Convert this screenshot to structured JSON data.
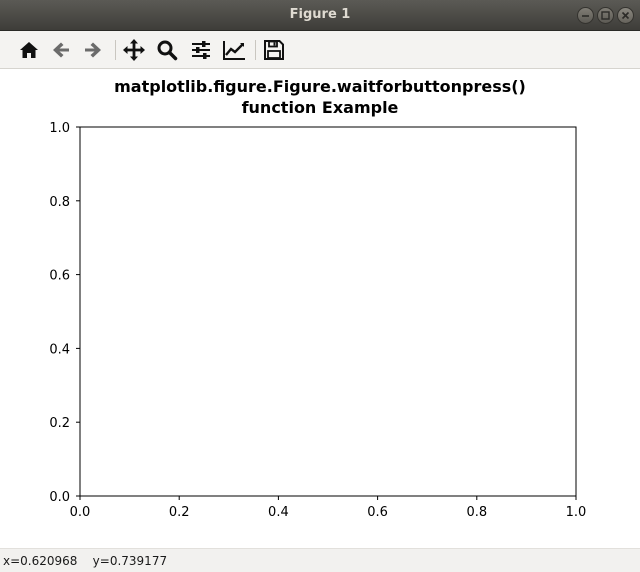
{
  "window": {
    "title": "Figure 1"
  },
  "toolbar": {
    "buttons": [
      {
        "name": "home",
        "icon": "home-icon"
      },
      {
        "name": "back",
        "icon": "arrow-left-icon"
      },
      {
        "name": "forward",
        "icon": "arrow-right-icon"
      },
      {
        "name": "pan",
        "icon": "move-icon"
      },
      {
        "name": "zoom",
        "icon": "magnifier-icon"
      },
      {
        "name": "configure-subplots",
        "icon": "sliders-icon"
      },
      {
        "name": "edit-axis",
        "icon": "line-chart-icon"
      },
      {
        "name": "save",
        "icon": "floppy-disk-icon"
      }
    ]
  },
  "figure": {
    "title_line1": "matplotlib.figure.Figure.waitforbuttonpress()",
    "title_line2": "function Example"
  },
  "chart_data": {
    "type": "line",
    "title": "matplotlib.figure.Figure.waitforbuttonpress() function Example",
    "xlabel": "",
    "ylabel": "",
    "xlim": [
      0.0,
      1.0
    ],
    "ylim": [
      0.0,
      1.0
    ],
    "x_ticks": [
      "0.0",
      "0.2",
      "0.4",
      "0.6",
      "0.8",
      "1.0"
    ],
    "y_ticks": [
      "0.0",
      "0.2",
      "0.4",
      "0.6",
      "0.8",
      "1.0"
    ],
    "series": [],
    "grid": false
  },
  "status": {
    "coords": "x=0.620968    y=0.739177"
  }
}
